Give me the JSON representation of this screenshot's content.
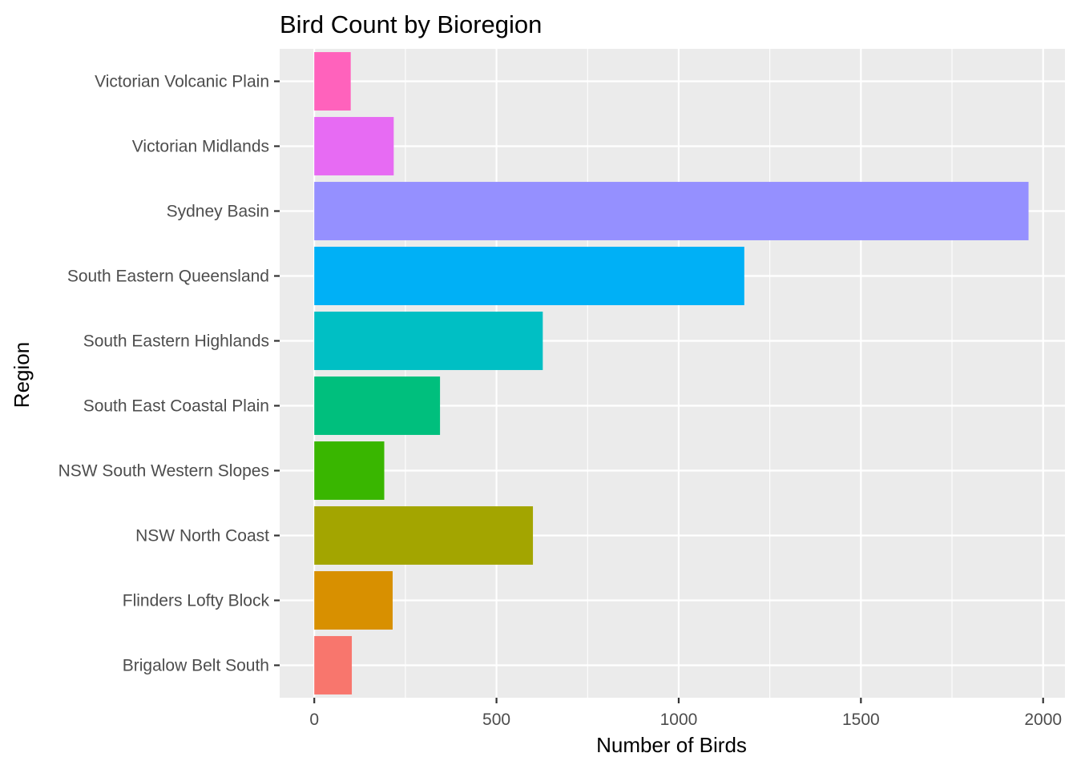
{
  "chart_data": {
    "type": "bar",
    "orientation": "horizontal",
    "title": "Bird Count by Bioregion",
    "xlabel": "Number of Birds",
    "ylabel": "Region",
    "xlim": [
      -95,
      2060
    ],
    "x_ticks": [
      0,
      500,
      1000,
      1500,
      2000
    ],
    "x_tick_labels": [
      "0",
      "500",
      "1000",
      "1500",
      "2000"
    ],
    "categories": [
      "Brigalow Belt South",
      "Flinders Lofty Block",
      "NSW North Coast",
      "NSW South Western Slopes",
      "South East Coastal Plain",
      "South Eastern Highlands",
      "South Eastern Queensland",
      "Sydney Basin",
      "Victorian Midlands",
      "Victorian Volcanic Plain"
    ],
    "values": [
      103,
      215,
      600,
      192,
      345,
      627,
      1180,
      1960,
      218,
      100
    ],
    "colors": [
      "#F8766D",
      "#D89000",
      "#A3A500",
      "#39B600",
      "#00BF7D",
      "#00BFC4",
      "#00B0F6",
      "#9590FF",
      "#E76BF3",
      "#FF62BC"
    ],
    "grid": true,
    "legend": "none",
    "panel_background": "#EBEBEB",
    "grid_color": "#FFFFFF"
  }
}
